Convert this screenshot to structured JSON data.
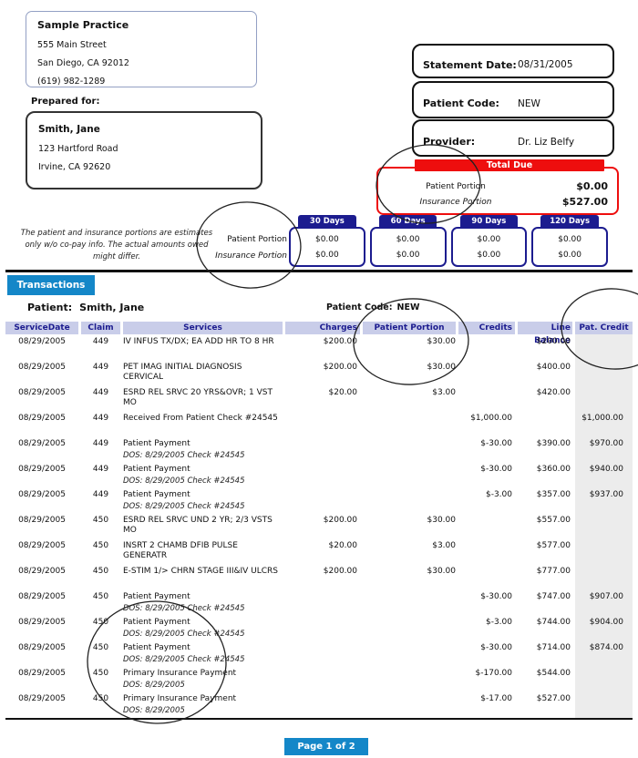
{
  "practice": {
    "name": "Sample Practice",
    "address1": "555 Main Street",
    "address2": "San Diego, CA 92012",
    "phone": "(619) 982-1289"
  },
  "prepared_for": {
    "label": "Prepared for:",
    "name": "Smith, Jane",
    "address1": "123 Hartford Road",
    "address2": "Irvine, CA 92620"
  },
  "statement": {
    "date_label": "Statement Date:",
    "date": "08/31/2005",
    "code_label": "Patient Code:",
    "code": "NEW",
    "provider_label": "Provider:",
    "provider": "Dr. Liz Belfy"
  },
  "total_due": {
    "title": "Total Due",
    "patient_label": "Patient Portion",
    "patient_amount": "$0.00",
    "insurance_label": "Insurance Portion",
    "insurance_amount": "$527.00"
  },
  "aging": {
    "patient_label": "Patient Portion",
    "insurance_label": "Insurance Portion",
    "buckets": [
      {
        "label": "30 Days",
        "patient": "$0.00",
        "insurance": "$0.00"
      },
      {
        "label": "60 Days",
        "patient": "$0.00",
        "insurance": "$0.00"
      },
      {
        "label": "90 Days",
        "patient": "$0.00",
        "insurance": "$0.00"
      },
      {
        "label": "120 Days",
        "patient": "$0.00",
        "insurance": "$0.00"
      }
    ]
  },
  "disclaimer": "The patient and insurance portions are estimates only w/o co-pay info. The actual amounts owed might differ.",
  "transactions": {
    "title": "Transactions",
    "patient_label": "Patient:",
    "patient_name": "Smith, Jane",
    "patient_code_label": "Patient Code:",
    "patient_code": "NEW",
    "columns": [
      "ServiceDate",
      "Claim",
      "Services",
      "Charges",
      "Patient Portion",
      "Credits",
      "Line Balance",
      "Pat. Credit"
    ],
    "rows": [
      {
        "date": "08/29/2005",
        "claim": "449",
        "services": "IV INFUS TX/DX; EA ADD HR TO 8 HR",
        "dos": "",
        "charges": "$200.00",
        "patient_portion": "$30.00",
        "credits": "",
        "line_balance": "$200.00",
        "pat_credit": ""
      },
      {
        "date": "08/29/2005",
        "claim": "449",
        "services": "PET IMAG INITIAL DIAGNOSIS CERVICAL",
        "dos": "",
        "charges": "$200.00",
        "patient_portion": "$30.00",
        "credits": "",
        "line_balance": "$400.00",
        "pat_credit": ""
      },
      {
        "date": "08/29/2005",
        "claim": "449",
        "services": "ESRD REL SRVC 20 YRS&OVR; 1 VST MO",
        "dos": "",
        "charges": "$20.00",
        "patient_portion": "$3.00",
        "credits": "",
        "line_balance": "$420.00",
        "pat_credit": ""
      },
      {
        "date": "08/29/2005",
        "claim": "449",
        "services": "Received From Patient Check #24545",
        "dos": "",
        "charges": "",
        "patient_portion": "",
        "credits": "$1,000.00",
        "line_balance": "",
        "pat_credit": "$1,000.00"
      },
      {
        "date": "08/29/2005",
        "claim": "449",
        "services": "Patient Payment",
        "dos": "DOS: 8/29/2005 Check #24545",
        "charges": "",
        "patient_portion": "",
        "credits": "$-30.00",
        "line_balance": "$390.00",
        "pat_credit": "$970.00"
      },
      {
        "date": "08/29/2005",
        "claim": "449",
        "services": "Patient Payment",
        "dos": "DOS: 8/29/2005 Check #24545",
        "charges": "",
        "patient_portion": "",
        "credits": "$-30.00",
        "line_balance": "$360.00",
        "pat_credit": "$940.00"
      },
      {
        "date": "08/29/2005",
        "claim": "449",
        "services": "Patient Payment",
        "dos": "DOS: 8/29/2005 Check #24545",
        "charges": "",
        "patient_portion": "",
        "credits": "$-3.00",
        "line_balance": "$357.00",
        "pat_credit": "$937.00"
      },
      {
        "date": "08/29/2005",
        "claim": "450",
        "services": "ESRD REL SRVC UND 2 YR; 2/3 VSTS MO",
        "dos": "",
        "charges": "$200.00",
        "patient_portion": "$30.00",
        "credits": "",
        "line_balance": "$557.00",
        "pat_credit": ""
      },
      {
        "date": "08/29/2005",
        "claim": "450",
        "services": "INSRT 2 CHAMB DFIB PULSE GENERATR",
        "dos": "",
        "charges": "$20.00",
        "patient_portion": "$3.00",
        "credits": "",
        "line_balance": "$577.00",
        "pat_credit": ""
      },
      {
        "date": "08/29/2005",
        "claim": "450",
        "services": "E-STIM 1/> CHRN STAGE III&IV ULCRS",
        "dos": "",
        "charges": "$200.00",
        "patient_portion": "$30.00",
        "credits": "",
        "line_balance": "$777.00",
        "pat_credit": ""
      },
      {
        "date": "08/29/2005",
        "claim": "450",
        "services": "Patient Payment",
        "dos": "DOS: 8/29/2005 Check #24545",
        "charges": "",
        "patient_portion": "",
        "credits": "$-30.00",
        "line_balance": "$747.00",
        "pat_credit": "$907.00"
      },
      {
        "date": "08/29/2005",
        "claim": "450",
        "services": "Patient Payment",
        "dos": "DOS: 8/29/2005 Check #24545",
        "charges": "",
        "patient_portion": "",
        "credits": "$-3.00",
        "line_balance": "$744.00",
        "pat_credit": "$904.00"
      },
      {
        "date": "08/29/2005",
        "claim": "450",
        "services": "Patient Payment",
        "dos": "DOS: 8/29/2005 Check #24545",
        "charges": "",
        "patient_portion": "",
        "credits": "$-30.00",
        "line_balance": "$714.00",
        "pat_credit": "$874.00"
      },
      {
        "date": "08/29/2005",
        "claim": "450",
        "services": "Primary Insurance Payment",
        "dos": "DOS: 8/29/2005",
        "charges": "",
        "patient_portion": "",
        "credits": "$-170.00",
        "line_balance": "$544.00",
        "pat_credit": ""
      },
      {
        "date": "08/29/2005",
        "claim": "450",
        "services": "Primary Insurance Payment",
        "dos": "DOS: 8/29/2005",
        "charges": "",
        "patient_portion": "",
        "credits": "$-17.00",
        "line_balance": "$527.00",
        "pat_credit": ""
      }
    ]
  },
  "footer": {
    "page_label": "Page 1 of 2"
  },
  "colors": {
    "navy": "#1c1c8f",
    "red": "#ee0e0e",
    "blue": "#1487c8",
    "header_band": "#c9cde9",
    "gray_column": "#ececec"
  }
}
